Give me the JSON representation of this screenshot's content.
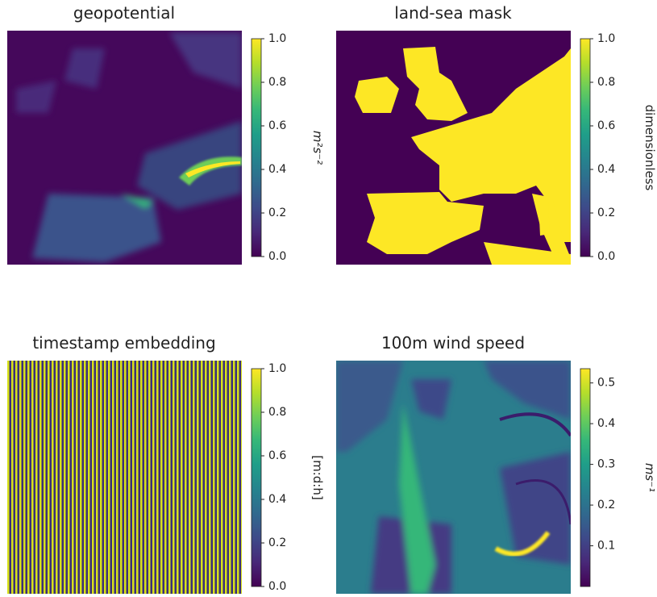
{
  "chart_data": [
    {
      "type": "heatmap",
      "title": "geopotential",
      "colorbar_label": "m²s⁻²",
      "colormap": "viridis",
      "clim": [
        0,
        1
      ],
      "cticks": [
        {
          "value": 0,
          "label": "0.0"
        },
        0.2,
        0.4,
        0.6,
        0.8,
        {
          "value": 1,
          "label": "1.0"
        }
      ]
    },
    {
      "type": "heatmap",
      "title": "land-sea mask",
      "colorbar_label": "dimensionless",
      "colormap": "viridis",
      "clim": [
        0,
        1
      ],
      "cticks": [
        {
          "value": 0,
          "label": "0.0"
        },
        0.2,
        0.4,
        0.6,
        0.8,
        {
          "value": 1,
          "label": "1.0"
        }
      ]
    },
    {
      "type": "heatmap",
      "title": "timestamp embedding",
      "colorbar_label": "[m:d:h]",
      "colormap": "viridis",
      "clim": [
        0,
        1
      ],
      "cticks": [
        {
          "value": 0,
          "label": "0.0"
        },
        0.2,
        0.4,
        0.6,
        0.8,
        {
          "value": 1,
          "label": "1.0"
        }
      ]
    },
    {
      "type": "heatmap",
      "title": "100m wind speed",
      "colorbar_label": "ms⁻¹",
      "colormap": "viridis",
      "clim": [
        0,
        0.535
      ],
      "cticks": [
        0.1,
        0.2,
        0.3,
        0.4,
        0.5
      ]
    }
  ]
}
